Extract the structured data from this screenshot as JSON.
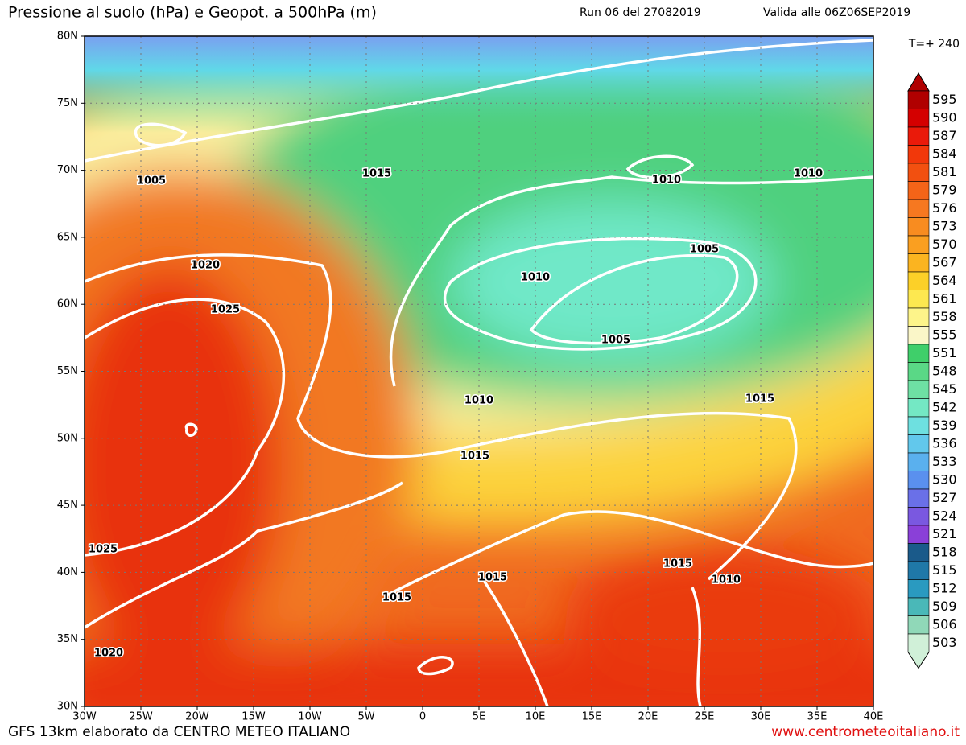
{
  "header": {
    "title": "Pressione al suolo (hPa) e Geopot. a 500hPa (m)",
    "run": "Run 06 del 27082019",
    "valid": "Valida alle 06Z06SEP2019",
    "forecast_step": "T=+ 240"
  },
  "map": {
    "lon_range": [
      -30,
      40
    ],
    "lat_range": [
      30,
      80
    ],
    "lon_ticks": [
      {
        "value": -30,
        "label": "30W"
      },
      {
        "value": -25,
        "label": "25W"
      },
      {
        "value": -20,
        "label": "20W"
      },
      {
        "value": -15,
        "label": "15W"
      },
      {
        "value": -10,
        "label": "10W"
      },
      {
        "value": -5,
        "label": "5W"
      },
      0,
      {
        "value": 5,
        "label": "5E"
      },
      {
        "value": 10,
        "label": "10E"
      },
      {
        "value": 15,
        "label": "15E"
      },
      {
        "value": 20,
        "label": "20E"
      },
      {
        "value": 25,
        "label": "25E"
      },
      {
        "value": 30,
        "label": "30E"
      },
      {
        "value": 35,
        "label": "35E"
      },
      {
        "value": 40,
        "label": "40E"
      }
    ],
    "lat_ticks": [
      {
        "value": 80,
        "label": "80N"
      },
      {
        "value": 75,
        "label": "75N"
      },
      {
        "value": 70,
        "label": "70N"
      },
      {
        "value": 65,
        "label": "65N"
      },
      {
        "value": 60,
        "label": "60N"
      },
      {
        "value": 55,
        "label": "55N"
      },
      {
        "value": 50,
        "label": "50N"
      },
      {
        "value": 45,
        "label": "45N"
      },
      {
        "value": 40,
        "label": "40N"
      },
      {
        "value": 35,
        "label": "35N"
      },
      {
        "value": 30,
        "label": "30N"
      }
    ],
    "isobar_labels": [
      1005,
      1015,
      1010,
      1010,
      1020,
      1025,
      1010,
      1005,
      1005,
      1010,
      1015,
      1015,
      1025,
      1015,
      1015,
      1010,
      1015,
      1020
    ]
  },
  "colorbar": {
    "levels": [
      595,
      590,
      587,
      584,
      581,
      579,
      576,
      573,
      570,
      567,
      564,
      561,
      558,
      555,
      551,
      548,
      545,
      542,
      539,
      536,
      533,
      530,
      527,
      524,
      521,
      518,
      515,
      512,
      509,
      506,
      503
    ],
    "colors": [
      "#b00000",
      "#d40000",
      "#ea1a0a",
      "#f2380a",
      "#f25010",
      "#f46418",
      "#f67820",
      "#f88c20",
      "#fa9f20",
      "#fbb420",
      "#fcd028",
      "#fde850",
      "#fdf48a",
      "#faf6c8",
      "#3fcf6a",
      "#5ad886",
      "#6ee0a4",
      "#74e8c4",
      "#6ee0e0",
      "#62c8ec",
      "#5ab0ee",
      "#5a90ee",
      "#6a70e8",
      "#7a58e0",
      "#8a40d8",
      "#1a5a8a",
      "#1f78a8",
      "#2a9ac0",
      "#4ab8b8",
      "#90d8b8",
      "#d0f0d8"
    ]
  },
  "footer": {
    "credit": "GFS 13km elaborato da CENTRO METEO ITALIANO",
    "url": "www.centrometeoitaliano.it"
  }
}
